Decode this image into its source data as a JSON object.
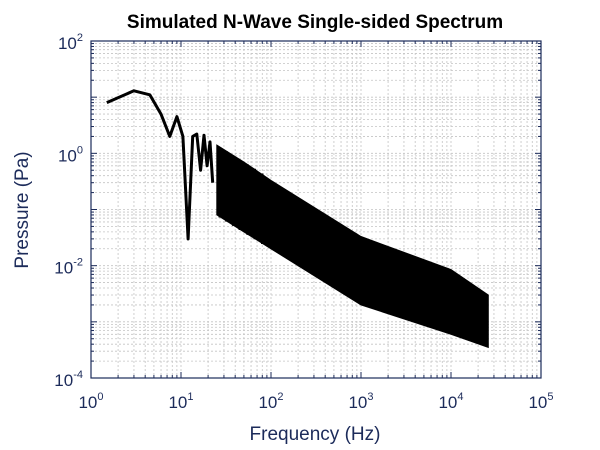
{
  "chart_data": {
    "type": "line",
    "title": "Simulated N-Wave Single-sided Spectrum",
    "xlabel": "Frequency (Hz)",
    "ylabel": "Pressure (Pa)",
    "x_scale": "log",
    "y_scale": "log",
    "xlim": [
      1,
      100000
    ],
    "ylim": [
      0.0001,
      100
    ],
    "grid": true,
    "minor_grid": true,
    "x_ticks": [
      {
        "base": "10",
        "exp": "0"
      },
      {
        "base": "10",
        "exp": "1"
      },
      {
        "base": "10",
        "exp": "2"
      },
      {
        "base": "10",
        "exp": "3"
      },
      {
        "base": "10",
        "exp": "4"
      },
      {
        "base": "10",
        "exp": "5"
      }
    ],
    "y_ticks": [
      {
        "base": "10",
        "exp": "-4"
      },
      {
        "base": "10",
        "exp": "-2"
      },
      {
        "base": "10",
        "exp": "0"
      },
      {
        "base": "10",
        "exp": "2"
      }
    ],
    "series": [
      {
        "color": "#000000",
        "x": [
          1.5,
          3,
          4.5,
          6,
          7.5,
          9,
          10.5,
          12,
          13.5,
          15,
          16.5,
          18,
          19.5,
          21,
          22.5
        ],
        "y": [
          8,
          13,
          11,
          5,
          2,
          4.5,
          2,
          0.03,
          2,
          2.2,
          0.5,
          2.1,
          0.6,
          1.6,
          0.3
        ],
        "envelope": {
          "x": [
            25,
            50,
            100,
            1000,
            10000,
            26000
          ],
          "upper": [
            1.4,
            0.7,
            0.33,
            0.033,
            0.0085,
            0.003
          ],
          "lower": [
            0.08,
            0.04,
            0.02,
            0.002,
            0.0006,
            0.00035
          ]
        }
      }
    ]
  },
  "colors": {
    "axis": "#1c2b5a",
    "line": "#000000",
    "grid": "#c4c4c4",
    "background": "#ffffff"
  }
}
